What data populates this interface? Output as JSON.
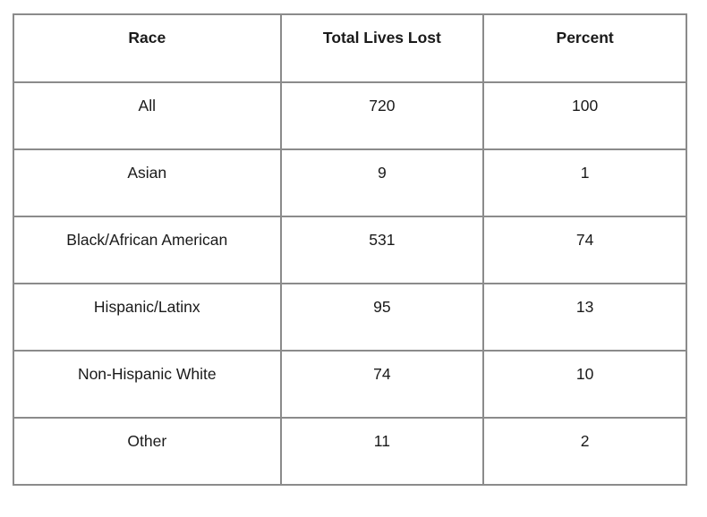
{
  "chart_data": {
    "type": "table",
    "columns": [
      "Race",
      "Total Lives Lost",
      "Percent"
    ],
    "rows": [
      {
        "race": "All",
        "total_lives_lost": 720,
        "percent": 100
      },
      {
        "race": "Asian",
        "total_lives_lost": 9,
        "percent": 1
      },
      {
        "race": "Black/African American",
        "total_lives_lost": 531,
        "percent": 74
      },
      {
        "race": "Hispanic/Latinx",
        "total_lives_lost": 95,
        "percent": 13
      },
      {
        "race": "Non-Hispanic White",
        "total_lives_lost": 74,
        "percent": 10
      },
      {
        "race": "Other",
        "total_lives_lost": 11,
        "percent": 2
      }
    ],
    "layout": {
      "border_color": "#8b8b8b",
      "text_color": "#1a1a1a",
      "background_color": "#ffffff",
      "header_bold": true
    }
  }
}
